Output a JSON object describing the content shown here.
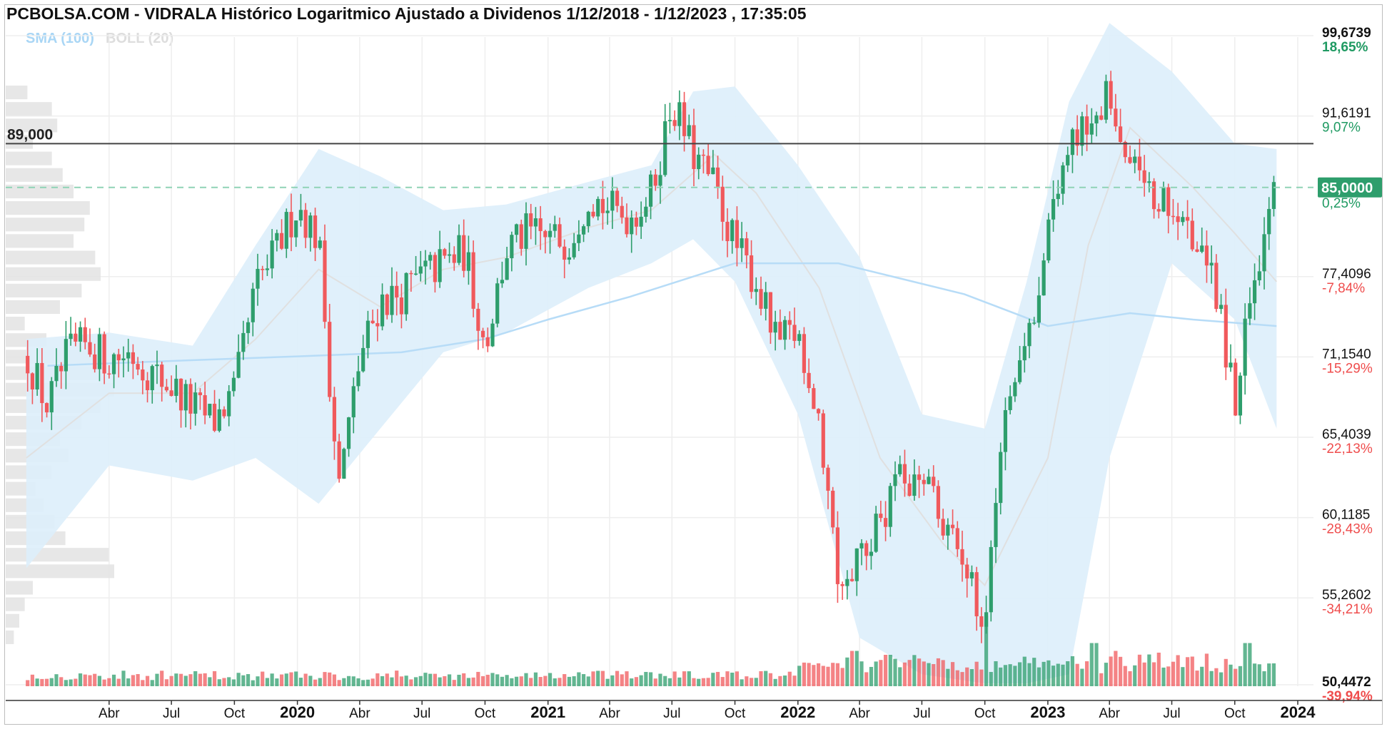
{
  "header": {
    "title": "PCBOLSA.COM - VIDRALA Histórico Logaritmico Ajustado a Dividenos 1/12/2018 - 1/12/2023 , 17:35:05"
  },
  "legend": {
    "sma": "SMA (100)",
    "boll": "BOLL (20)"
  },
  "colors": {
    "up": "#2e9e6c",
    "down": "#f0595c",
    "band_fill": "#ddeefb",
    "sma": "#b7dcf7",
    "boll_mid": "#e0e0e0",
    "pct_pos": "#1f9a62",
    "pct_neg": "#ef4d4d",
    "current_bg": "#2e9e6c",
    "grid": "#eeeeee",
    "profile": "#e3e3e3"
  },
  "chart_data": {
    "type": "candlestick",
    "scale": "log",
    "y_range": [
      50.4472,
      99.6739
    ],
    "x_range": [
      "2018-12-01",
      "2023-12-01"
    ],
    "grid": true,
    "price_levels": [
      {
        "price": "99,6739",
        "pct": "18,65%",
        "bold": true
      },
      {
        "price": "91,6191",
        "pct": "9,07%",
        "bold": false
      },
      {
        "price": "77,4096",
        "pct": "-7,84%",
        "bold": false
      },
      {
        "price": "71,1540",
        "pct": "-15,29%",
        "bold": false
      },
      {
        "price": "65,4039",
        "pct": "-22,13%",
        "bold": false
      },
      {
        "price": "60,1185",
        "pct": "-28,43%",
        "bold": false
      },
      {
        "price": "55,2602",
        "pct": "-34,21%",
        "bold": false
      },
      {
        "price": "50,4472",
        "pct": "-39,94%",
        "bold": true
      }
    ],
    "reference_line": {
      "value": 89.0,
      "label": "89,000"
    },
    "current": {
      "value": 85.0,
      "label": "85,0000",
      "pct": "0,25%"
    },
    "x_ticks": [
      {
        "label": "Abr",
        "date": "2019-04-01",
        "year": false
      },
      {
        "label": "Jul",
        "date": "2019-07-01",
        "year": false
      },
      {
        "label": "Oct",
        "date": "2019-10-01",
        "year": false
      },
      {
        "label": "2020",
        "date": "2020-01-01",
        "year": true
      },
      {
        "label": "Abr",
        "date": "2020-04-01",
        "year": false
      },
      {
        "label": "Jul",
        "date": "2020-07-01",
        "year": false
      },
      {
        "label": "Oct",
        "date": "2020-10-01",
        "year": false
      },
      {
        "label": "2021",
        "date": "2021-01-01",
        "year": true
      },
      {
        "label": "Abr",
        "date": "2021-04-01",
        "year": false
      },
      {
        "label": "Jul",
        "date": "2021-07-01",
        "year": false
      },
      {
        "label": "Oct",
        "date": "2021-10-01",
        "year": false
      },
      {
        "label": "2022",
        "date": "2022-01-01",
        "year": true
      },
      {
        "label": "Abr",
        "date": "2022-04-01",
        "year": false
      },
      {
        "label": "Jul",
        "date": "2022-07-01",
        "year": false
      },
      {
        "label": "Oct",
        "date": "2022-10-01",
        "year": false
      },
      {
        "label": "2023",
        "date": "2023-01-01",
        "year": true
      },
      {
        "label": "Abr",
        "date": "2023-04-01",
        "year": false
      },
      {
        "label": "Jul",
        "date": "2023-07-01",
        "year": false
      },
      {
        "label": "Oct",
        "date": "2023-10-01",
        "year": false
      },
      {
        "label": "2024",
        "date": "2024-01-01",
        "year": true
      }
    ],
    "price_path": [
      [
        "2018-12-01",
        71.5
      ],
      [
        "2019-01-01",
        67.5
      ],
      [
        "2019-02-01",
        71.5
      ],
      [
        "2019-03-01",
        72.0
      ],
      [
        "2019-04-01",
        71.0
      ],
      [
        "2019-05-01",
        71.5
      ],
      [
        "2019-06-01",
        70.0
      ],
      [
        "2019-07-01",
        69.0
      ],
      [
        "2019-08-01",
        67.5
      ],
      [
        "2019-09-01",
        66.5
      ],
      [
        "2019-10-01",
        68.5
      ],
      [
        "2019-11-01",
        76.5
      ],
      [
        "2019-12-01",
        79.5
      ],
      [
        "2020-01-01",
        83.5
      ],
      [
        "2020-02-01",
        80.5
      ],
      [
        "2020-03-01",
        62.0
      ],
      [
        "2020-04-01",
        71.0
      ],
      [
        "2020-05-01",
        75.5
      ],
      [
        "2020-06-01",
        76.0
      ],
      [
        "2020-07-01",
        77.5
      ],
      [
        "2020-08-01",
        78.5
      ],
      [
        "2020-09-01",
        79.5
      ],
      [
        "2020-10-01",
        72.0
      ],
      [
        "2020-11-01",
        79.5
      ],
      [
        "2020-12-01",
        81.0
      ],
      [
        "2021-01-01",
        80.5
      ],
      [
        "2021-02-01",
        80.5
      ],
      [
        "2021-03-01",
        84.5
      ],
      [
        "2021-04-01",
        83.0
      ],
      [
        "2021-05-01",
        82.5
      ],
      [
        "2021-06-01",
        84.5
      ],
      [
        "2021-07-01",
        93.0
      ],
      [
        "2021-08-01",
        88.0
      ],
      [
        "2021-09-01",
        85.0
      ],
      [
        "2021-10-01",
        80.0
      ],
      [
        "2021-11-01",
        77.0
      ],
      [
        "2021-12-01",
        72.0
      ],
      [
        "2022-01-01",
        73.0
      ],
      [
        "2022-02-01",
        67.0
      ],
      [
        "2022-03-01",
        56.5
      ],
      [
        "2022-04-01",
        57.5
      ],
      [
        "2022-05-01",
        60.0
      ],
      [
        "2022-06-01",
        62.5
      ],
      [
        "2022-07-01",
        63.5
      ],
      [
        "2022-08-01",
        60.0
      ],
      [
        "2022-09-01",
        56.5
      ],
      [
        "2022-10-01",
        54.5
      ],
      [
        "2022-11-01",
        68.5
      ],
      [
        "2022-12-01",
        72.5
      ],
      [
        "2023-01-01",
        80.5
      ],
      [
        "2023-02-01",
        90.5
      ],
      [
        "2023-03-01",
        91.0
      ],
      [
        "2023-04-01",
        93.5
      ],
      [
        "2023-05-01",
        88.0
      ],
      [
        "2023-06-01",
        83.5
      ],
      [
        "2023-07-01",
        83.0
      ],
      [
        "2023-08-01",
        79.5
      ],
      [
        "2023-09-01",
        77.0
      ],
      [
        "2023-10-01",
        68.0
      ],
      [
        "2023-11-01",
        78.5
      ],
      [
        "2023-12-01",
        85.0
      ]
    ],
    "sma_path": [
      [
        "2019-01-01",
        70.5
      ],
      [
        "2019-06-01",
        70.8
      ],
      [
        "2020-01-01",
        71.2
      ],
      [
        "2020-06-01",
        71.5
      ],
      [
        "2020-10-01",
        72.5
      ],
      [
        "2021-01-01",
        74.0
      ],
      [
        "2021-05-01",
        75.8
      ],
      [
        "2021-10-01",
        78.5
      ],
      [
        "2022-03-01",
        78.5
      ],
      [
        "2022-09-01",
        76.0
      ],
      [
        "2023-01-01",
        73.5
      ],
      [
        "2023-05-01",
        74.5
      ],
      [
        "2023-08-01",
        74.0
      ],
      [
        "2023-12-01",
        73.5
      ]
    ],
    "band_upper": [
      [
        "2018-12-01",
        72.5
      ],
      [
        "2019-04-01",
        73.0
      ],
      [
        "2019-08-01",
        72.0
      ],
      [
        "2019-11-01",
        80.0
      ],
      [
        "2020-02-01",
        88.5
      ],
      [
        "2020-05-01",
        86.0
      ],
      [
        "2020-08-01",
        83.0
      ],
      [
        "2020-11-01",
        83.5
      ],
      [
        "2021-03-01",
        85.5
      ],
      [
        "2021-06-01",
        87.0
      ],
      [
        "2021-08-01",
        94.0
      ],
      [
        "2021-10-01",
        94.5
      ],
      [
        "2022-01-01",
        87.0
      ],
      [
        "2022-04-01",
        79.0
      ],
      [
        "2022-07-01",
        67.0
      ],
      [
        "2022-10-01",
        66.0
      ],
      [
        "2022-12-01",
        77.0
      ],
      [
        "2023-02-01",
        93.0
      ],
      [
        "2023-04-01",
        101.0
      ],
      [
        "2023-07-01",
        96.0
      ],
      [
        "2023-10-01",
        89.0
      ],
      [
        "2023-12-01",
        88.5
      ]
    ],
    "band_lower": [
      [
        "2018-12-01",
        57.0
      ],
      [
        "2019-04-01",
        63.5
      ],
      [
        "2019-08-01",
        62.5
      ],
      [
        "2019-11-01",
        64.0
      ],
      [
        "2020-02-01",
        61.0
      ],
      [
        "2020-05-01",
        66.0
      ],
      [
        "2020-08-01",
        71.5
      ],
      [
        "2020-11-01",
        73.0
      ],
      [
        "2021-03-01",
        76.5
      ],
      [
        "2021-06-01",
        78.5
      ],
      [
        "2021-08-01",
        80.5
      ],
      [
        "2021-10-01",
        77.0
      ],
      [
        "2022-01-01",
        67.0
      ],
      [
        "2022-04-01",
        53.0
      ],
      [
        "2022-07-01",
        51.0
      ],
      [
        "2022-10-01",
        48.0
      ],
      [
        "2022-12-01",
        50.0
      ],
      [
        "2023-02-01",
        51.0
      ],
      [
        "2023-04-01",
        64.0
      ],
      [
        "2023-07-01",
        78.5
      ],
      [
        "2023-10-01",
        74.0
      ],
      [
        "2023-12-01",
        66.0
      ]
    ],
    "boll_mid": [
      [
        "2018-12-01",
        64.0
      ],
      [
        "2019-04-01",
        68.5
      ],
      [
        "2019-08-01",
        68.5
      ],
      [
        "2019-11-01",
        72.5
      ],
      [
        "2020-02-01",
        78.0
      ],
      [
        "2020-05-01",
        75.0
      ],
      [
        "2020-08-01",
        78.0
      ],
      [
        "2020-11-01",
        79.0
      ],
      [
        "2021-03-01",
        81.5
      ],
      [
        "2021-06-01",
        83.0
      ],
      [
        "2021-09-01",
        88.0
      ],
      [
        "2021-11-01",
        84.5
      ],
      [
        "2022-02-01",
        76.5
      ],
      [
        "2022-05-01",
        64.0
      ],
      [
        "2022-08-01",
        58.5
      ],
      [
        "2022-10-01",
        56.0
      ],
      [
        "2023-01-01",
        64.0
      ],
      [
        "2023-03-01",
        80.0
      ],
      [
        "2023-05-01",
        90.5
      ],
      [
        "2023-08-01",
        85.0
      ],
      [
        "2023-10-01",
        81.0
      ],
      [
        "2023-12-01",
        77.0
      ]
    ],
    "volume_spikes": [
      [
        "2022-10-05",
        0.9
      ],
      [
        "2023-03-10",
        0.55
      ],
      [
        "2023-04-08",
        0.45
      ],
      [
        "2023-10-20",
        0.55
      ],
      [
        "2022-03-25",
        0.45
      ],
      [
        "2022-05-12",
        0.4
      ]
    ],
    "volume_profile": [
      0.16,
      0.34,
      0.38,
      0.2,
      0.34,
      0.42,
      0.5,
      0.62,
      0.58,
      0.5,
      0.66,
      0.7,
      0.56,
      0.4,
      0.14,
      0.3,
      0.66,
      0.72,
      0.8,
      0.7,
      0.56,
      0.4,
      0.46,
      0.34,
      0.22,
      0.28,
      0.36,
      0.44,
      0.76,
      0.8,
      0.2,
      0.14,
      0.1,
      0.06
    ]
  }
}
